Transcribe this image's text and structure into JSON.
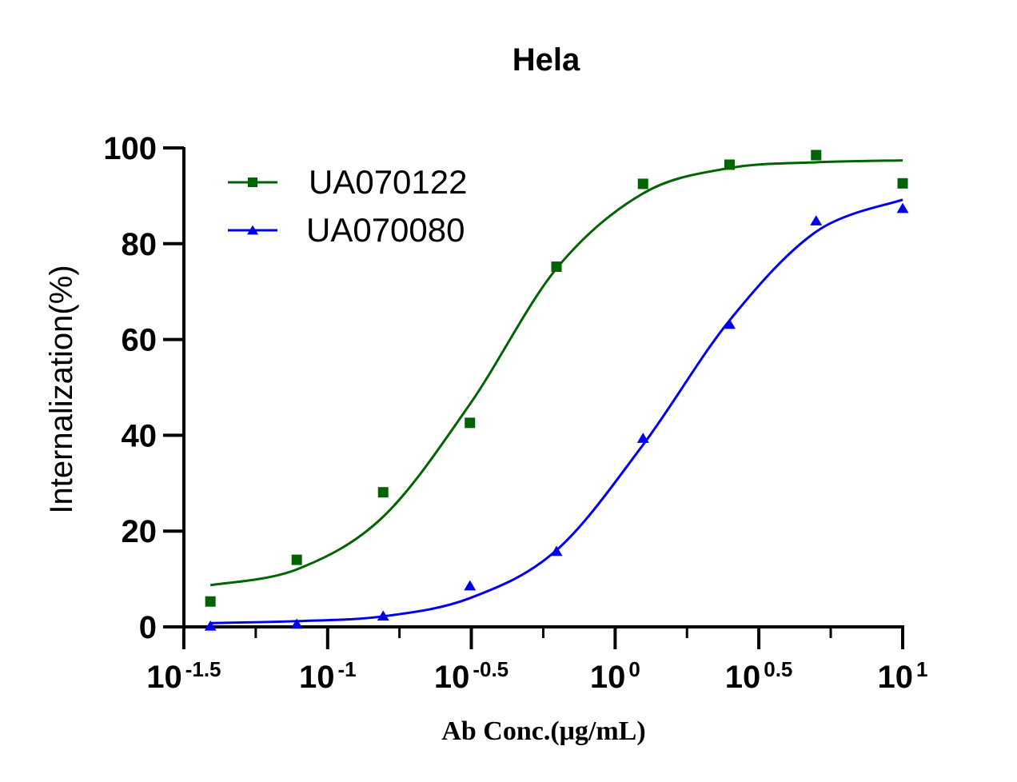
{
  "chart_data": {
    "type": "scatter",
    "title": "Hela",
    "xlabel": "Ab Conc.(μg/mL)",
    "ylabel": "Internalization(%)",
    "x_scale": "log10",
    "xlim": [
      0.0316,
      10
    ],
    "ylim": [
      0,
      100
    ],
    "x_ticks": [
      {
        "base": "10",
        "exp": "-1.5",
        "value": 0.0316
      },
      {
        "base": "10",
        "exp": "-1",
        "value": 0.1
      },
      {
        "base": "10",
        "exp": "-0.5",
        "value": 0.316
      },
      {
        "base": "10",
        "exp": "0",
        "value": 1
      },
      {
        "base": "10",
        "exp": "0.5",
        "value": 3.16
      },
      {
        "base": "10",
        "exp": "1",
        "value": 10
      }
    ],
    "y_ticks": [
      "0",
      "20",
      "40",
      "60",
      "80",
      "100"
    ],
    "legend_position": "top-left",
    "grid": false,
    "series": [
      {
        "name": "UA070122",
        "color": "#006400",
        "marker": "square",
        "x": [
          0.0391,
          0.0781,
          0.156,
          0.3125,
          0.625,
          1.25,
          2.5,
          5,
          10
        ],
        "y": [
          5.3,
          14.0,
          28.1,
          42.6,
          75.2,
          92.5,
          96.5,
          98.5,
          92.6
        ],
        "fit_curve_y": [
          8.7,
          12.0,
          23.0,
          46.5,
          74.8,
          90.5,
          95.8,
          97.0,
          97.4
        ]
      },
      {
        "name": "UA070080",
        "color": "#0000ee",
        "marker": "triangle",
        "x": [
          0.0391,
          0.0781,
          0.156,
          0.3125,
          0.625,
          1.25,
          2.5,
          5,
          10
        ],
        "y": [
          0.2,
          0.6,
          2.3,
          8.6,
          15.8,
          39.4,
          63.2,
          84.8,
          87.4
        ],
        "fit_curve_y": [
          0.8,
          1.2,
          2.2,
          6.0,
          16.0,
          38.0,
          64.0,
          82.5,
          89.2
        ]
      }
    ]
  }
}
